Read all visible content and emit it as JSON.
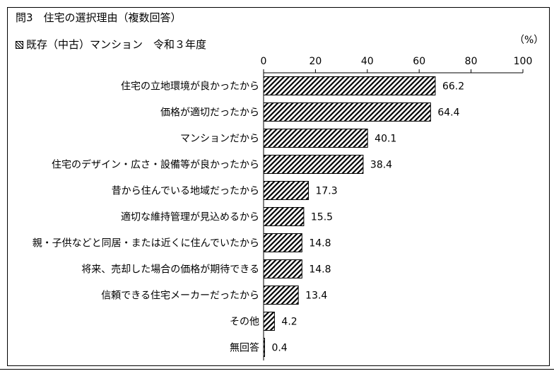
{
  "chart_data": {
    "type": "bar",
    "orientation": "horizontal",
    "title": "問3　住宅の選択理由（複数回答）",
    "subtitle": "既存（中古）マンション　令和３年度",
    "unit": "（%）",
    "categories": [
      "住宅の立地環境が良かったから",
      "価格が適切だったから",
      "マンションだから",
      "住宅のデザイン・広さ・設備等が良かったから",
      "昔から住んでいる地域だったから",
      "適切な維持管理が見込めるから",
      "親・子供などと同居・または近くに住んでいたから",
      "将来、売却した場合の価格が期待できる",
      "信頼できる住宅メーカーだったから",
      "その他",
      "無回答"
    ],
    "values": [
      66.2,
      64.4,
      40.1,
      38.4,
      17.3,
      15.5,
      14.8,
      14.8,
      13.4,
      4.2,
      0.4
    ],
    "value_labels": [
      "66.2",
      "64.4",
      "40.1",
      "38.4",
      "17.3",
      "15.5",
      "14.8",
      "14.8",
      "13.4",
      "4.2",
      "0.4"
    ],
    "xlim": [
      0,
      100
    ],
    "xticks": [
      "0",
      "20",
      "40",
      "60",
      "80",
      "100"
    ],
    "tick_values": [
      0,
      20,
      40,
      60,
      80,
      100
    ],
    "grid": false,
    "bar_pattern": "diagonal-hatch",
    "colors": {
      "bar_stroke": "#000000",
      "hatch": "#000000",
      "background": "#ffffff"
    }
  }
}
